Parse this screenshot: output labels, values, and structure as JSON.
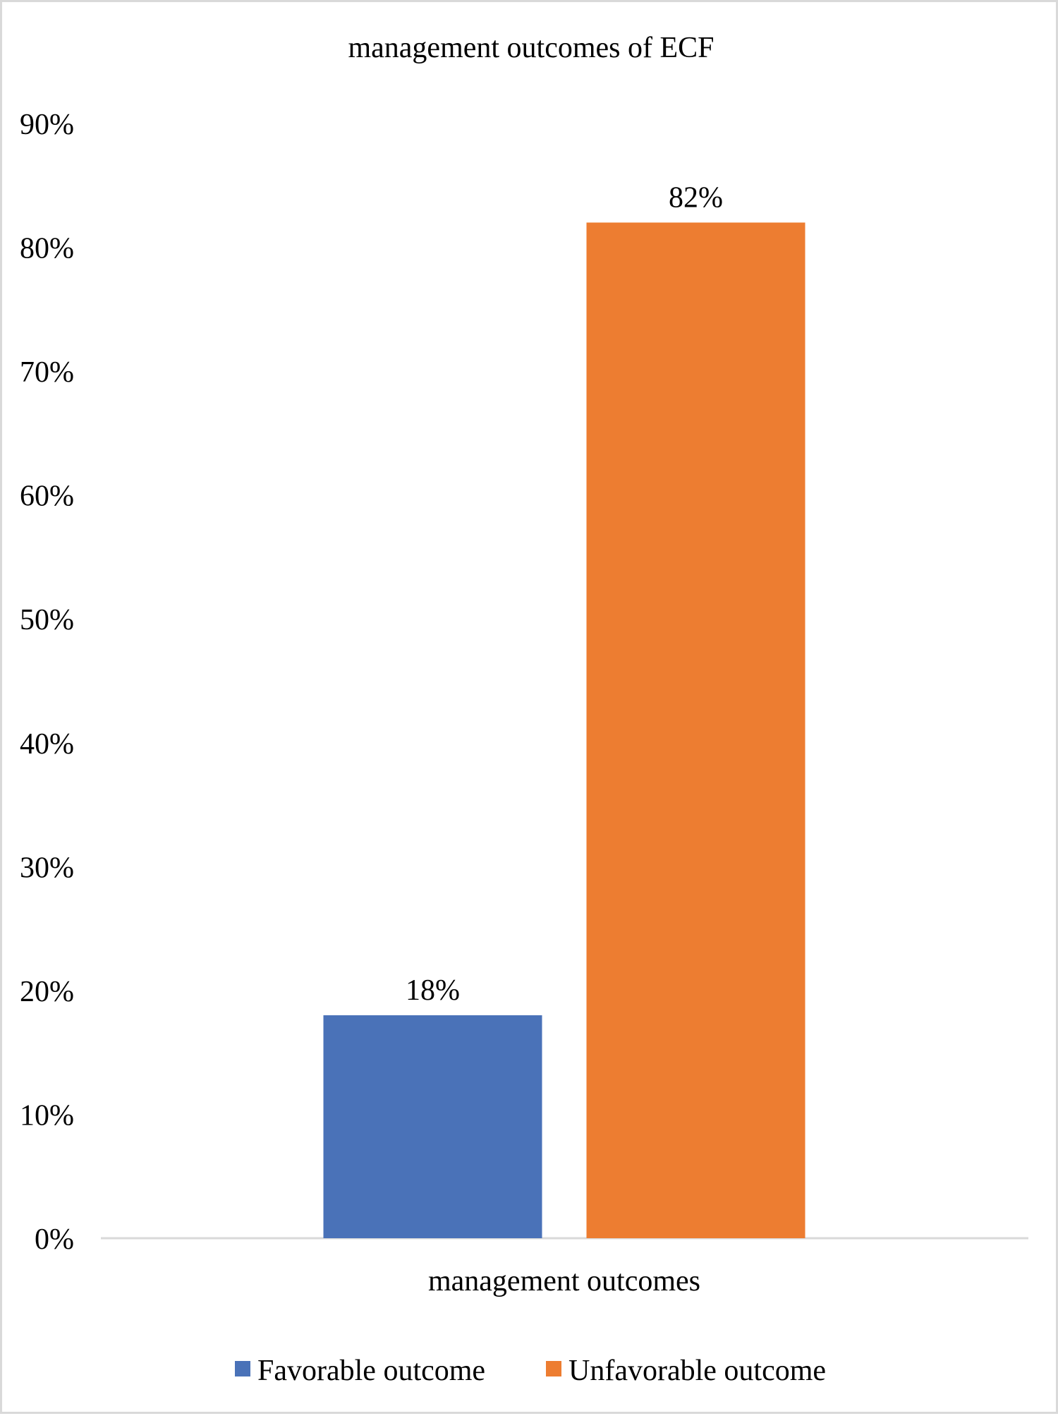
{
  "chart_data": {
    "type": "bar",
    "title": "management outcomes of ECF",
    "categories": [
      "management outcomes"
    ],
    "series": [
      {
        "name": "Favorable outcome",
        "values": [
          18
        ],
        "color": "#4a72b8"
      },
      {
        "name": "Unfavorable outcome",
        "values": [
          82
        ],
        "color": "#ed7d31"
      }
    ],
    "data_labels": [
      "18%",
      "82%"
    ],
    "xlabel": "",
    "ylabel": "",
    "ylim": [
      0,
      90
    ],
    "y_ticks": [
      "0%",
      "10%",
      "20%",
      "30%",
      "40%",
      "50%",
      "60%",
      "70%",
      "80%",
      "90%"
    ],
    "grid": false,
    "legend_position": "bottom"
  }
}
